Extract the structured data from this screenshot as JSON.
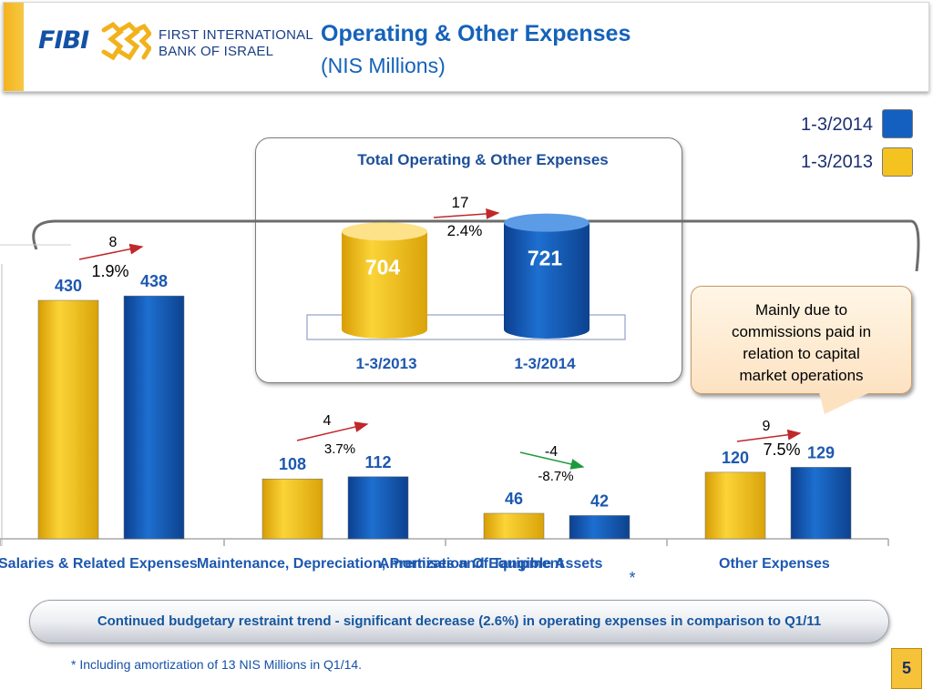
{
  "header": {
    "logo_text": "FIBI",
    "bank_name_line1": "FIRST INTERNATIONAL",
    "bank_name_line2": "BANK OF ISRAEL",
    "title": "Operating & Other Expenses",
    "subtitle": "(NIS Millions)"
  },
  "legend": {
    "items": [
      {
        "label": "1-3/2014",
        "color": "#1460c0"
      },
      {
        "label": "1-3/2013",
        "color": "#f5c31f"
      }
    ]
  },
  "colors": {
    "series_2013": "#f5c31f",
    "series_2014": "#1460c0",
    "value_label": "#1d58b0",
    "increase_arrow": "#c0282b",
    "decrease_arrow": "#1e9a3e",
    "title": "#1462ba"
  },
  "chart_data": [
    {
      "type": "bar",
      "categories": [
        "Salaries & Related     Expenses",
        "Maintenance, Depreciation, Premises and Equipment",
        "Amortization Of Tangible Assets",
        "Other Expenses"
      ],
      "series": [
        {
          "name": "1-3/2013",
          "values": [
            430,
            108,
            46,
            120
          ]
        },
        {
          "name": "1-3/2014",
          "values": [
            438,
            112,
            42,
            129
          ]
        }
      ],
      "change_values": [
        "8",
        "4",
        "-4",
        "9"
      ],
      "change_percents": [
        "1.9%",
        "3.7%",
        "-8.7%",
        "7.5%"
      ],
      "category_markers": [
        "",
        "",
        "*",
        ""
      ],
      "ylim": [
        0,
        460
      ]
    },
    {
      "type": "bar",
      "title": "Total Operating & Other Expenses",
      "categories": [
        "1-3/2013",
        "1-3/2014"
      ],
      "values": [
        704,
        721
      ],
      "change_value": "17",
      "change_percent": "2.4%"
    }
  ],
  "callout": {
    "lines": [
      "Mainly due to",
      "commissions paid in",
      "relation to capital",
      "market operations"
    ]
  },
  "banner": {
    "text": "Continued budgetary restraint trend -  significant decrease (2.6%) in operating expenses in comparison to Q1/11"
  },
  "footnote": "* Including amortization of 13 NIS Millions in Q1/14.",
  "page_number": "5"
}
